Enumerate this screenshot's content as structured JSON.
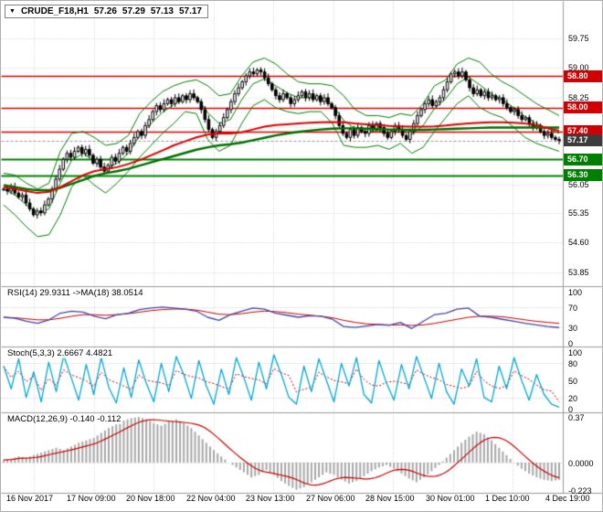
{
  "header": {
    "dropdown_icon": "▼",
    "symbol": "CRUDE_F18,H1",
    "open": "57.26",
    "high": "57.29",
    "low": "57.13",
    "close": "57.17"
  },
  "panels": {
    "rsi": {
      "label": "RSI(14) 29.9311  ->MA(18) 38.0514",
      "ticks": [
        {
          "text": "100",
          "value": 100
        },
        {
          "text": "70",
          "value": 70
        },
        {
          "text": "30",
          "value": 30
        },
        {
          "text": "0",
          "value": 0
        }
      ]
    },
    "stoch": {
      "label": "Stoch(5,3,3) 2.6667 4.4821",
      "ticks": [
        {
          "text": "100",
          "value": 100
        },
        {
          "text": "80",
          "value": 80
        },
        {
          "text": "50",
          "value": 50
        },
        {
          "text": "20",
          "value": 20
        },
        {
          "text": "0",
          "value": 0
        }
      ]
    },
    "macd": {
      "label": "MACD(12,26,9) -0.140 -0.112",
      "ticks": [
        {
          "text": "0.37",
          "value": 0.37
        },
        {
          "text": "0.0000",
          "value": 0
        },
        {
          "text": "-0.223",
          "value": -0.223
        }
      ]
    }
  },
  "price_axis": {
    "ticks": [
      "59.75",
      "59.00",
      "58.25",
      "57.50",
      "56.05",
      "55.35",
      "54.60",
      "53.85"
    ],
    "badges": [
      {
        "text": "58.80",
        "value": 58.8,
        "bg": "#d20000"
      },
      {
        "text": "58.00",
        "value": 58.0,
        "bg": "#d20000"
      },
      {
        "text": "57.40",
        "value": 57.4,
        "bg": "#d20000"
      },
      {
        "text": "57.17",
        "value": 57.17,
        "bg": "#3c3c3c"
      },
      {
        "text": "56.70",
        "value": 56.7,
        "bg": "#008000"
      },
      {
        "text": "56.30",
        "value": 56.3,
        "bg": "#008000"
      }
    ]
  },
  "time_axis": {
    "labels": [
      "16 Nov 2017",
      "17 Nov 09:00",
      "20 Nov 18:00",
      "22 Nov 04:00",
      "23 Nov 13:00",
      "27 Nov 06:00",
      "28 Nov 15:00",
      "30 Nov 01:00",
      "1 Dec 10:00",
      "4 Dec 19:00"
    ]
  },
  "colors": {
    "background": "#ffffff",
    "grid": "#cdcdcd",
    "separator": "#9a9a9a",
    "axis_text": "#000000",
    "candle_outline": "#000000",
    "candle_up": "#ffffff",
    "candle_down": "#000000",
    "bollinger": "#008000",
    "ma_red": "#e00000",
    "ma_green": "#007000",
    "level_red": "#e00000",
    "level_green": "#008000",
    "last_price_line": "#999999",
    "rsi_line": "#4646a6",
    "signal_red": "#cc0000",
    "stoch_line": "#00a8d8",
    "macd_hist": "#a8a8a8"
  },
  "chart_data": {
    "type": "candlestick",
    "symbol": "CRUDE_F18",
    "timeframe": "H1",
    "title": "CRUDE_F18,H1 57.26 57.29 57.13 57.17",
    "last_ohlc": {
      "open": 57.26,
      "high": 57.29,
      "low": 57.13,
      "close": 57.17
    },
    "price_range": [
      53.55,
      60.55
    ],
    "x_labels": [
      "16 Nov 2017",
      "17 Nov 09:00",
      "20 Nov 18:00",
      "22 Nov 04:00",
      "23 Nov 13:00",
      "27 Nov 06:00",
      "28 Nov 15:00",
      "30 Nov 01:00",
      "1 Dec 10:00",
      "4 Dec 19:00"
    ],
    "closes": [
      55.95,
      55.9,
      56.0,
      55.85,
      55.75,
      55.8,
      55.6,
      55.45,
      55.3,
      55.4,
      55.35,
      55.55,
      55.7,
      55.95,
      56.2,
      56.45,
      56.7,
      56.85,
      56.75,
      56.9,
      57.0,
      56.85,
      56.95,
      56.8,
      56.6,
      56.7,
      56.5,
      56.4,
      56.55,
      56.75,
      56.65,
      56.85,
      57.0,
      56.9,
      57.1,
      57.25,
      57.4,
      57.3,
      57.55,
      57.7,
      57.9,
      58.05,
      57.95,
      58.1,
      58.2,
      58.1,
      58.25,
      58.15,
      58.3,
      58.2,
      58.35,
      58.25,
      58.15,
      57.95,
      57.7,
      57.45,
      57.25,
      57.4,
      57.55,
      57.75,
      57.95,
      58.15,
      58.35,
      58.5,
      58.65,
      58.8,
      58.9,
      58.85,
      58.95,
      58.9,
      58.75,
      58.6,
      58.45,
      58.3,
      58.2,
      58.35,
      58.25,
      58.1,
      58.2,
      58.3,
      58.4,
      58.25,
      58.35,
      58.2,
      58.3,
      58.15,
      58.25,
      58.1,
      58.0,
      57.8,
      57.55,
      57.35,
      57.25,
      57.45,
      57.3,
      57.5,
      57.4,
      57.35,
      57.55,
      57.45,
      57.6,
      57.5,
      57.35,
      57.25,
      57.4,
      57.55,
      57.45,
      57.3,
      57.2,
      57.4,
      57.6,
      57.8,
      57.95,
      58.1,
      58.2,
      58.05,
      58.15,
      58.25,
      58.45,
      58.65,
      58.85,
      58.9,
      58.8,
      58.9,
      58.7,
      58.5,
      58.35,
      58.45,
      58.3,
      58.4,
      58.25,
      58.3,
      58.2,
      58.25,
      58.1,
      58.0,
      57.9,
      57.95,
      57.8,
      57.7,
      57.75,
      57.6,
      57.5,
      57.55,
      57.4,
      57.3,
      57.35,
      57.25,
      57.2,
      57.17
    ],
    "bollinger": {
      "upper": [
        56.35,
        56.3,
        56.1,
        55.95,
        56.1,
        56.9,
        57.35,
        57.4,
        57.25,
        57.05,
        57.1,
        57.3,
        57.85,
        58.15,
        58.4,
        58.55,
        58.65,
        58.7,
        58.55,
        58.3,
        58.35,
        58.8,
        59.15,
        59.25,
        59.1,
        58.85,
        58.65,
        58.6,
        58.6,
        58.55,
        58.3,
        57.95,
        57.8,
        57.8,
        57.75,
        57.85,
        57.8,
        58.1,
        58.55,
        58.7,
        59.1,
        59.25,
        59.15,
        58.85,
        58.65,
        58.5,
        58.3,
        58.1,
        57.95,
        57.8
      ],
      "lower": [
        55.55,
        55.3,
        55.0,
        54.75,
        54.8,
        55.3,
        56.0,
        56.3,
        56.05,
        55.85,
        56.1,
        56.4,
        56.75,
        57.05,
        57.35,
        57.6,
        57.9,
        57.85,
        57.2,
        56.9,
        57.05,
        57.6,
        58.05,
        58.2,
        58.0,
        57.9,
        57.85,
        57.9,
        57.9,
        57.6,
        57.05,
        57.0,
        57.0,
        57.05,
        56.95,
        57.1,
        56.85,
        57.0,
        57.4,
        57.75,
        58.1,
        58.3,
        58.0,
        57.85,
        57.75,
        57.5,
        57.25,
        57.1,
        57.0,
        56.9
      ]
    },
    "ma_red": [
      56.0,
      55.95,
      55.9,
      55.85,
      55.88,
      56.0,
      56.15,
      56.3,
      56.4,
      56.45,
      56.5,
      56.58,
      56.68,
      56.8,
      56.92,
      57.05,
      57.15,
      57.25,
      57.32,
      57.35,
      57.35,
      57.38,
      57.45,
      57.52,
      57.56,
      57.58,
      57.6,
      57.62,
      57.63,
      57.64,
      57.63,
      57.6,
      57.58,
      57.56,
      57.54,
      57.53,
      57.52,
      57.52,
      57.53,
      57.55,
      57.58,
      57.6,
      57.62,
      57.63,
      57.63,
      57.62,
      57.6,
      57.55,
      57.48,
      57.42
    ],
    "ma_green": [
      56.05,
      56.0,
      55.95,
      55.92,
      55.92,
      55.98,
      56.08,
      56.18,
      56.28,
      56.35,
      56.4,
      56.46,
      56.54,
      56.62,
      56.7,
      56.78,
      56.86,
      56.94,
      57.0,
      57.05,
      57.08,
      57.12,
      57.18,
      57.24,
      57.3,
      57.35,
      57.39,
      57.42,
      57.45,
      57.47,
      57.48,
      57.48,
      57.47,
      57.46,
      57.45,
      57.44,
      57.44,
      57.44,
      57.45,
      57.46,
      57.47,
      57.48,
      57.49,
      57.5,
      57.5,
      57.5,
      57.5,
      57.5,
      57.5,
      57.5
    ],
    "levels": {
      "resistance": [
        58.8,
        58.0,
        57.4
      ],
      "support": [
        56.7,
        56.3
      ],
      "last_price": 57.17
    },
    "rsi": {
      "range": [
        0,
        100
      ],
      "levels": [
        70,
        30
      ],
      "values": [
        50,
        48,
        42,
        38,
        45,
        58,
        62,
        60,
        52,
        47,
        55,
        58,
        65,
        68,
        70,
        68,
        66,
        62,
        50,
        44,
        55,
        62,
        68,
        66,
        58,
        54,
        50,
        53,
        52,
        46,
        32,
        30,
        33,
        36,
        34,
        40,
        28,
        42,
        55,
        58,
        66,
        68,
        52,
        50,
        46,
        42,
        38,
        35,
        32,
        29.93
      ],
      "ma": [
        50,
        49,
        47,
        45,
        45,
        48,
        52,
        55,
        55,
        54,
        55,
        57,
        60,
        63,
        65,
        66,
        66,
        64,
        60,
        56,
        55,
        57,
        60,
        62,
        61,
        59,
        56,
        54,
        52,
        49,
        44,
        40,
        37,
        36,
        35,
        35,
        34,
        35,
        38,
        42,
        46,
        50,
        52,
        52,
        51,
        48,
        45,
        42,
        40,
        38.05
      ]
    },
    "stoch": {
      "range": [
        0,
        100
      ],
      "levels": [
        80,
        20
      ],
      "values": [
        75,
        35,
        88,
        20,
        65,
        12,
        82,
        30,
        94,
        55,
        15,
        78,
        25,
        90,
        38,
        10,
        72,
        20,
        86,
        45,
        12,
        80,
        30,
        92,
        60,
        18,
        85,
        40,
        8,
        70,
        25,
        90,
        55,
        15,
        82,
        35,
        95,
        60,
        20,
        8,
        75,
        30,
        88,
        50,
        12,
        80,
        40,
        90,
        25,
        10,
        85,
        45,
        15,
        78,
        35,
        92,
        55,
        18,
        80,
        30,
        8,
        70,
        40,
        88,
        20,
        12,
        75,
        35,
        90,
        50,
        15,
        60,
        25,
        8,
        2.67
      ]
    },
    "macd": {
      "range": [
        -0.223,
        0.37
      ],
      "values": [
        0.02,
        0.03,
        0.05,
        0.04,
        0.06,
        0.08,
        0.1,
        0.12,
        0.1,
        0.13,
        0.16,
        0.18,
        0.2,
        0.24,
        0.28,
        0.31,
        0.34,
        0.36,
        0.37,
        0.35,
        0.32,
        0.3,
        0.33,
        0.35,
        0.32,
        0.28,
        0.22,
        0.16,
        0.1,
        0.05,
        0.0,
        -0.04,
        -0.08,
        -0.12,
        -0.1,
        -0.06,
        -0.1,
        -0.15,
        -0.19,
        -0.22,
        -0.2,
        -0.16,
        -0.12,
        -0.08,
        -0.1,
        -0.14,
        -0.17,
        -0.15,
        -0.11,
        -0.07,
        -0.04,
        -0.02,
        -0.05,
        -0.09,
        -0.13,
        -0.16,
        -0.12,
        -0.07,
        -0.02,
        0.04,
        0.1,
        0.16,
        0.21,
        0.25,
        0.23,
        0.18,
        0.12,
        0.06,
        0.0,
        -0.05,
        -0.09,
        -0.12,
        -0.14,
        -0.15,
        -0.14
      ]
    }
  }
}
